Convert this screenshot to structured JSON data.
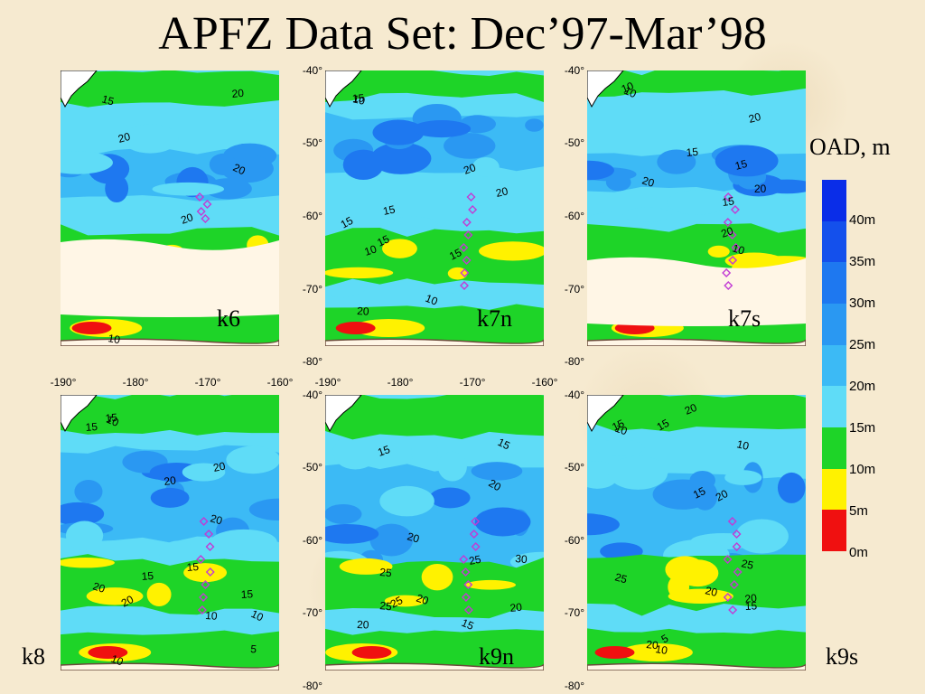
{
  "title": "APFZ Data Set: Dec’97-Mar’98",
  "colorbar": {
    "title": "OAD, m",
    "labels": [
      "40m",
      "35m",
      "30m",
      "25m",
      "20m",
      "15m",
      "10m",
      "5m",
      "0m"
    ],
    "colors": [
      "#0a2de8",
      "#1450ec",
      "#1e78f0",
      "#2a98f2",
      "#3cbaf5",
      "#5fdcf7",
      "#1ed428",
      "#fff200",
      "#f01010"
    ]
  },
  "lon_ticks": [
    "-190°",
    "-180°",
    "-170°",
    "-160°"
  ],
  "lat_ticks": [
    "-40°",
    "-50°",
    "-60°",
    "-70°",
    "-80°"
  ],
  "chart_data": [
    {
      "type": "heatmap",
      "panel": "k6",
      "contour_labels": [
        "15",
        "20",
        "20",
        "20",
        "20",
        "10"
      ]
    },
    {
      "type": "heatmap",
      "panel": "k7n",
      "contour_labels": [
        "15",
        "20",
        "20",
        "15",
        "15",
        "15",
        "10",
        "15",
        "10",
        "20",
        "10"
      ]
    },
    {
      "type": "heatmap",
      "panel": "k7s",
      "contour_labels": [
        "10",
        "20",
        "15",
        "15",
        "20",
        "20",
        "15",
        "20",
        "10",
        "10"
      ]
    },
    {
      "type": "heatmap",
      "panel": "k8",
      "contour_labels": [
        "10",
        "15",
        "20",
        "20",
        "20",
        "15",
        "15",
        "20",
        "20",
        "15",
        "10",
        "10",
        "10",
        "5",
        "15"
      ]
    },
    {
      "type": "heatmap",
      "panel": "k9n",
      "contour_labels": [
        "15",
        "15",
        "20",
        "20",
        "25",
        "25",
        "30",
        "25",
        "20",
        "25",
        "20",
        "15",
        "20"
      ]
    },
    {
      "type": "heatmap",
      "panel": "k9s",
      "contour_labels": [
        "10",
        "15",
        "20",
        "10",
        "15",
        "20",
        "25",
        "20",
        "25",
        "20",
        "15",
        "20",
        "5",
        "10",
        "15"
      ]
    }
  ],
  "panels": [
    {
      "label": "k6"
    },
    {
      "label": "k7n"
    },
    {
      "label": "k7s"
    },
    {
      "label": "k8"
    },
    {
      "label": "k9n"
    },
    {
      "label": "k9s"
    }
  ]
}
